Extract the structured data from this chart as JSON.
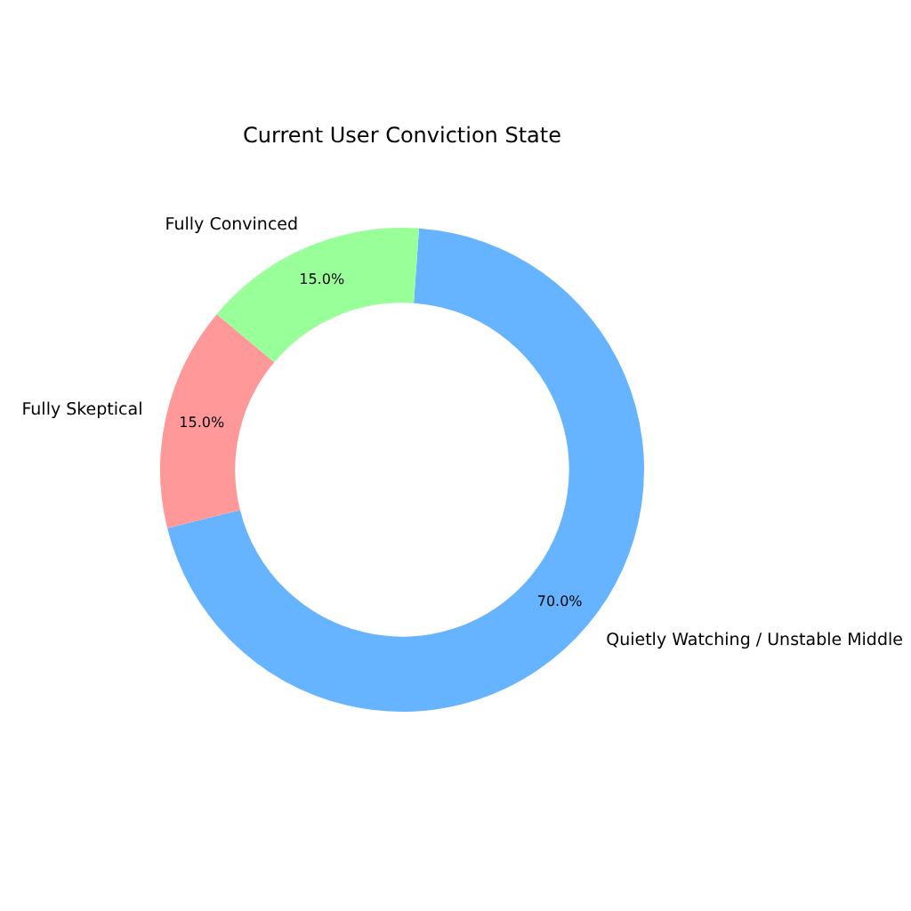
{
  "chart_data": {
    "type": "donut",
    "title": "Current User Conviction State",
    "categories": [
      "Quietly Watching / Unstable Middle",
      "Fully Skeptical",
      "Fully Convinced"
    ],
    "values": [
      70,
      15,
      15
    ],
    "colors": [
      "#66b3ff",
      "#ff9999",
      "#99ff99"
    ],
    "value_labels": [
      "70.0%",
      "15.0%",
      "15.0%"
    ],
    "legend": false
  }
}
